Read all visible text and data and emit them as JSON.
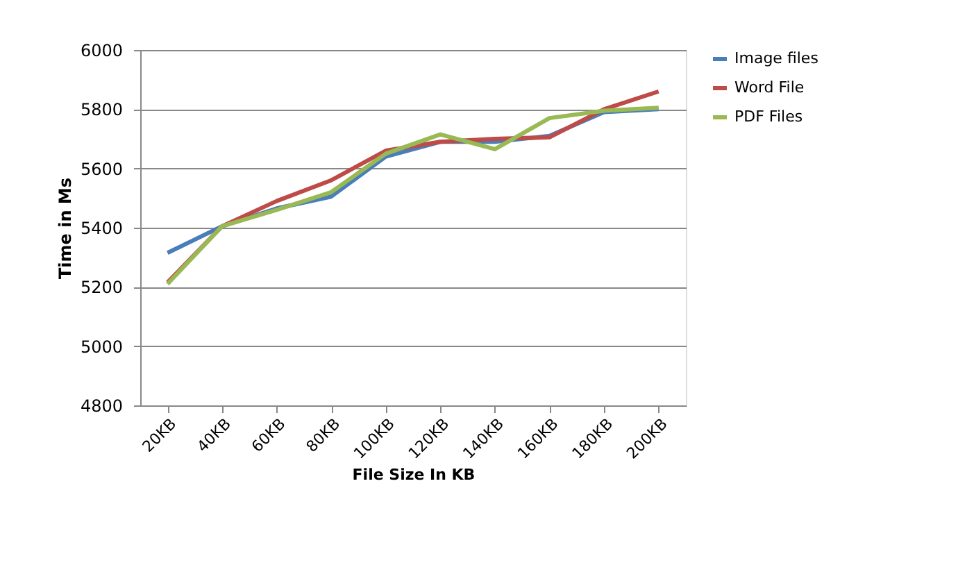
{
  "chart_data": {
    "type": "line",
    "xlabel": "File Size  In KB",
    "ylabel": "Time in Ms",
    "categories": [
      "20KB",
      "40KB",
      "60KB",
      "80KB",
      "100KB",
      "120KB",
      "140KB",
      "160KB",
      "180KB",
      "200KB"
    ],
    "series": [
      {
        "name": "Image files",
        "color": "#4a7ebb",
        "values": [
          5315,
          5405,
          5465,
          5505,
          5640,
          5690,
          5690,
          5710,
          5790,
          5800
        ]
      },
      {
        "name": "Word File",
        "color": "#be4b48",
        "values": [
          5215,
          5405,
          5490,
          5560,
          5660,
          5690,
          5700,
          5705,
          5800,
          5860
        ]
      },
      {
        "name": "PDF Files",
        "color": "#98b954",
        "values": [
          5210,
          5405,
          5460,
          5520,
          5650,
          5715,
          5665,
          5770,
          5795,
          5805
        ]
      }
    ],
    "ylim": [
      4800,
      6000
    ],
    "yticks": [
      4800,
      5000,
      5200,
      5400,
      5600,
      5800,
      6000
    ],
    "grid": "y",
    "legend": "right",
    "marker": "none",
    "line_style": "solid"
  }
}
